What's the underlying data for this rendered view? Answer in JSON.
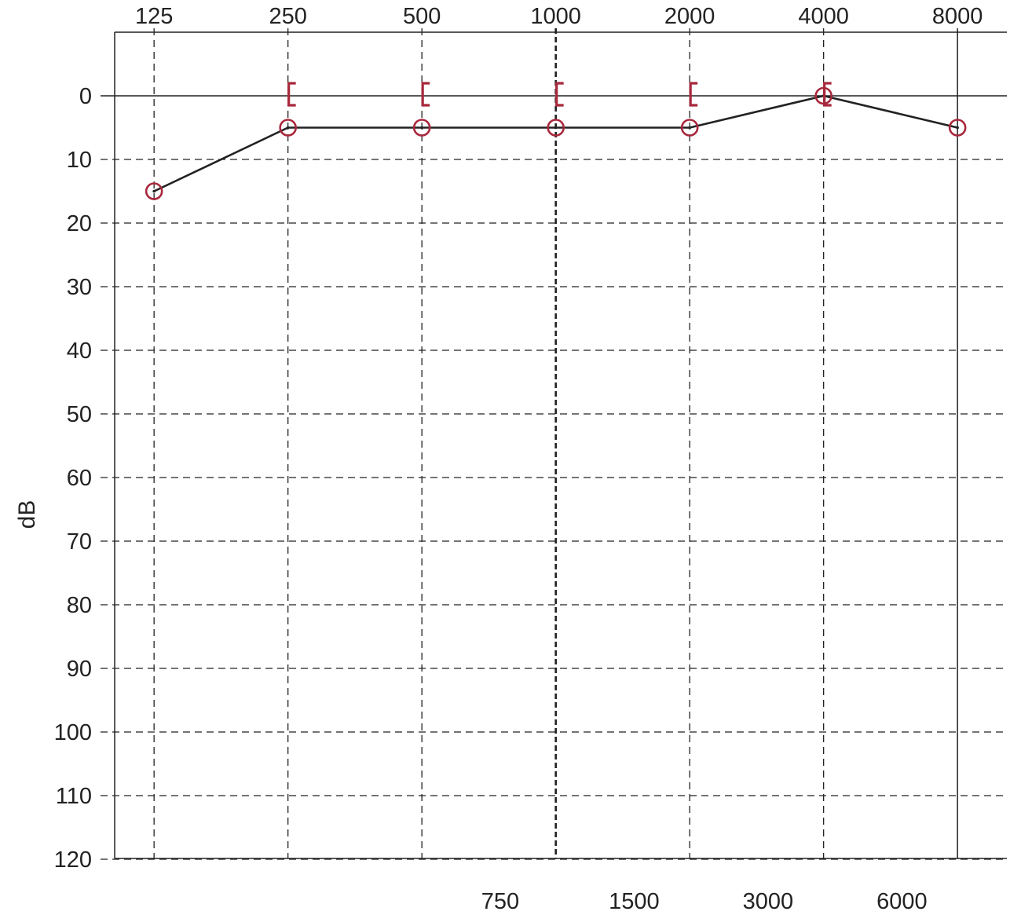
{
  "chart_data": {
    "type": "line",
    "title": "",
    "xlabel": "",
    "ylabel": "dB",
    "x_scale": "log",
    "y_inverted": true,
    "ylim": [
      -10,
      120
    ],
    "grid": true,
    "top_ticks": [
      "125",
      "250",
      "500",
      "1000",
      "2000",
      "4000",
      "8000"
    ],
    "bottom_ticks": [
      "750",
      "1500",
      "3000",
      "6000"
    ],
    "yticks": [
      "0",
      "10",
      "20",
      "30",
      "40",
      "50",
      "60",
      "70",
      "80",
      "90",
      "100",
      "110",
      "120"
    ],
    "series": [
      {
        "marker": "circle",
        "color": "#a8283c",
        "x": [
          125,
          250,
          500,
          1000,
          2000,
          4000,
          8000
        ],
        "y": [
          15,
          5,
          5,
          5,
          5,
          0,
          5
        ]
      },
      {
        "marker": "bracket-left",
        "color": "#a8283c",
        "x": [
          250,
          500,
          1000,
          2000,
          4000
        ],
        "y": [
          0,
          0,
          0,
          0,
          0
        ]
      }
    ]
  }
}
